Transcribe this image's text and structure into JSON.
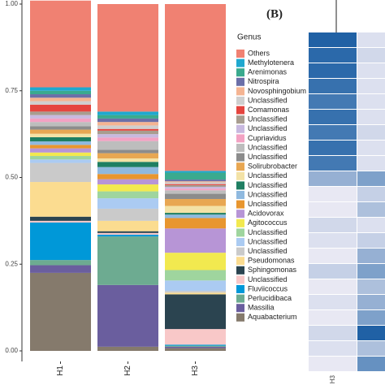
{
  "chart_data": [
    {
      "type": "stacked_bar",
      "categories": [
        "H1",
        "H2",
        "H3"
      ],
      "legend_title": "Genus",
      "ylim": [
        0,
        1
      ],
      "yticks": [
        {
          "value": 0,
          "label": "0.00"
        },
        {
          "value": 0.25,
          "label": "0.25"
        },
        {
          "value": 0.5,
          "label": "0.50"
        },
        {
          "value": 0.75,
          "label": "0.75"
        },
        {
          "value": 1,
          "label": "1.00"
        }
      ],
      "series": [
        {
          "name": "Others",
          "color": "#F08172",
          "values": [
            0.25,
            0.31,
            0.481
          ]
        },
        {
          "name": "Methylotenera",
          "color": "#1FA8CF",
          "values": [
            0.01,
            0.01,
            0.005
          ]
        },
        {
          "name": "Arenimonas",
          "color": "#3AAA8E",
          "values": [
            0.01,
            0.01,
            0.02
          ]
        },
        {
          "name": "Nitrospira",
          "color": "#6B6FA8",
          "values": [
            0.01,
            0.01,
            0.005
          ]
        },
        {
          "name": "Novosphingobium",
          "color": "#F5B492",
          "values": [
            0.01,
            0.01,
            0.003
          ]
        },
        {
          "name": "Unclassified",
          "color": "#CFCFCF",
          "values": [
            0.01,
            0.01,
            0.005
          ]
        },
        {
          "name": "Comamonas",
          "color": "#E5453F",
          "values": [
            0.02,
            0.005,
            0.003
          ]
        },
        {
          "name": "Unclassified",
          "color": "#A89D90",
          "values": [
            0.01,
            0.01,
            0.005
          ]
        },
        {
          "name": "Unclassified",
          "color": "#C8B9DF",
          "values": [
            0.01,
            0.01,
            0.005
          ]
        },
        {
          "name": "Cupriavidus",
          "color": "#F3A2C3",
          "values": [
            0.01,
            0.01,
            0.005
          ]
        },
        {
          "name": "Unclassified",
          "color": "#BDBDBD",
          "values": [
            0.012,
            0.025,
            0.01
          ]
        },
        {
          "name": "Unclassified",
          "color": "#8C8C8C",
          "values": [
            0.01,
            0.01,
            0.015
          ]
        },
        {
          "name": "Solirubrobacter",
          "color": "#E8A752",
          "values": [
            0.012,
            0.015,
            0.02
          ]
        },
        {
          "name": "Unclassified",
          "color": "#F3E2A6",
          "values": [
            0.01,
            0.01,
            0.02
          ]
        },
        {
          "name": "Unclassified",
          "color": "#1F7F62",
          "values": [
            0.012,
            0.015,
            0.005
          ]
        },
        {
          "name": "Unclassified",
          "color": "#8FB9DF",
          "values": [
            0.01,
            0.02,
            0.01
          ]
        },
        {
          "name": "Unclassified",
          "color": "#E8962F",
          "values": [
            0.01,
            0.015,
            0.03
          ]
        },
        {
          "name": "Acidovorax",
          "color": "#B795D6",
          "values": [
            0.012,
            0.015,
            0.07
          ]
        },
        {
          "name": "Agitococcus",
          "color": "#F2E94F",
          "values": [
            0.01,
            0.02,
            0.05
          ]
        },
        {
          "name": "Unclassified",
          "color": "#9FD59E",
          "values": [
            0.01,
            0.02,
            0.03
          ]
        },
        {
          "name": "Unclassified",
          "color": "#ABCBF2",
          "values": [
            0.01,
            0.03,
            0.03
          ]
        },
        {
          "name": "Unclassified",
          "color": "#CACACA",
          "values": [
            0.055,
            0.035,
            0.005
          ]
        },
        {
          "name": "Pseudomonas",
          "color": "#FBDC90",
          "values": [
            0.1,
            0.03,
            0.005
          ]
        },
        {
          "name": "Sphingomonas",
          "color": "#2B4450",
          "values": [
            0.012,
            0.005,
            0.1
          ]
        },
        {
          "name": "Unclassified",
          "color": "#F8C8C8",
          "values": [
            0.005,
            0.005,
            0.045
          ]
        },
        {
          "name": "Fluviicoccus",
          "color": "#0098D8",
          "values": [
            0.108,
            0.005,
            0.003
          ]
        },
        {
          "name": "Perlucidibaca",
          "color": "#6DAB91",
          "values": [
            0.015,
            0.14,
            0.003
          ]
        },
        {
          "name": "Massilia",
          "color": "#6A5E9E",
          "values": [
            0.022,
            0.178,
            0.004
          ]
        },
        {
          "name": "Aquabacterium",
          "color": "#857A6C",
          "values": [
            0.225,
            0.012,
            0.008
          ]
        }
      ]
    },
    {
      "type": "heatmap",
      "title": "(B)",
      "columns": [
        "H3",
        null
      ],
      "low_color": "#F4F0F8",
      "high_color": "#08519C",
      "values": [
        [
          0.9,
          0.1
        ],
        [
          0.85,
          0.15
        ],
        [
          0.85,
          0.1
        ],
        [
          0.8,
          0.1
        ],
        [
          0.75,
          0.1
        ],
        [
          0.8,
          0.1
        ],
        [
          0.75,
          0.15
        ],
        [
          0.8,
          0.1
        ],
        [
          0.75,
          0.1
        ],
        [
          0.4,
          0.5
        ],
        [
          0.05,
          0.2
        ],
        [
          0.05,
          0.3
        ],
        [
          0.15,
          0.1
        ],
        [
          0.1,
          0.2
        ],
        [
          0.05,
          0.4
        ],
        [
          0.2,
          0.5
        ],
        [
          0.05,
          0.3
        ],
        [
          0.1,
          0.4
        ],
        [
          0.05,
          0.5
        ],
        [
          0.15,
          0.9
        ],
        [
          0.1,
          0.3
        ],
        [
          0.05,
          0.6
        ]
      ]
    }
  ]
}
